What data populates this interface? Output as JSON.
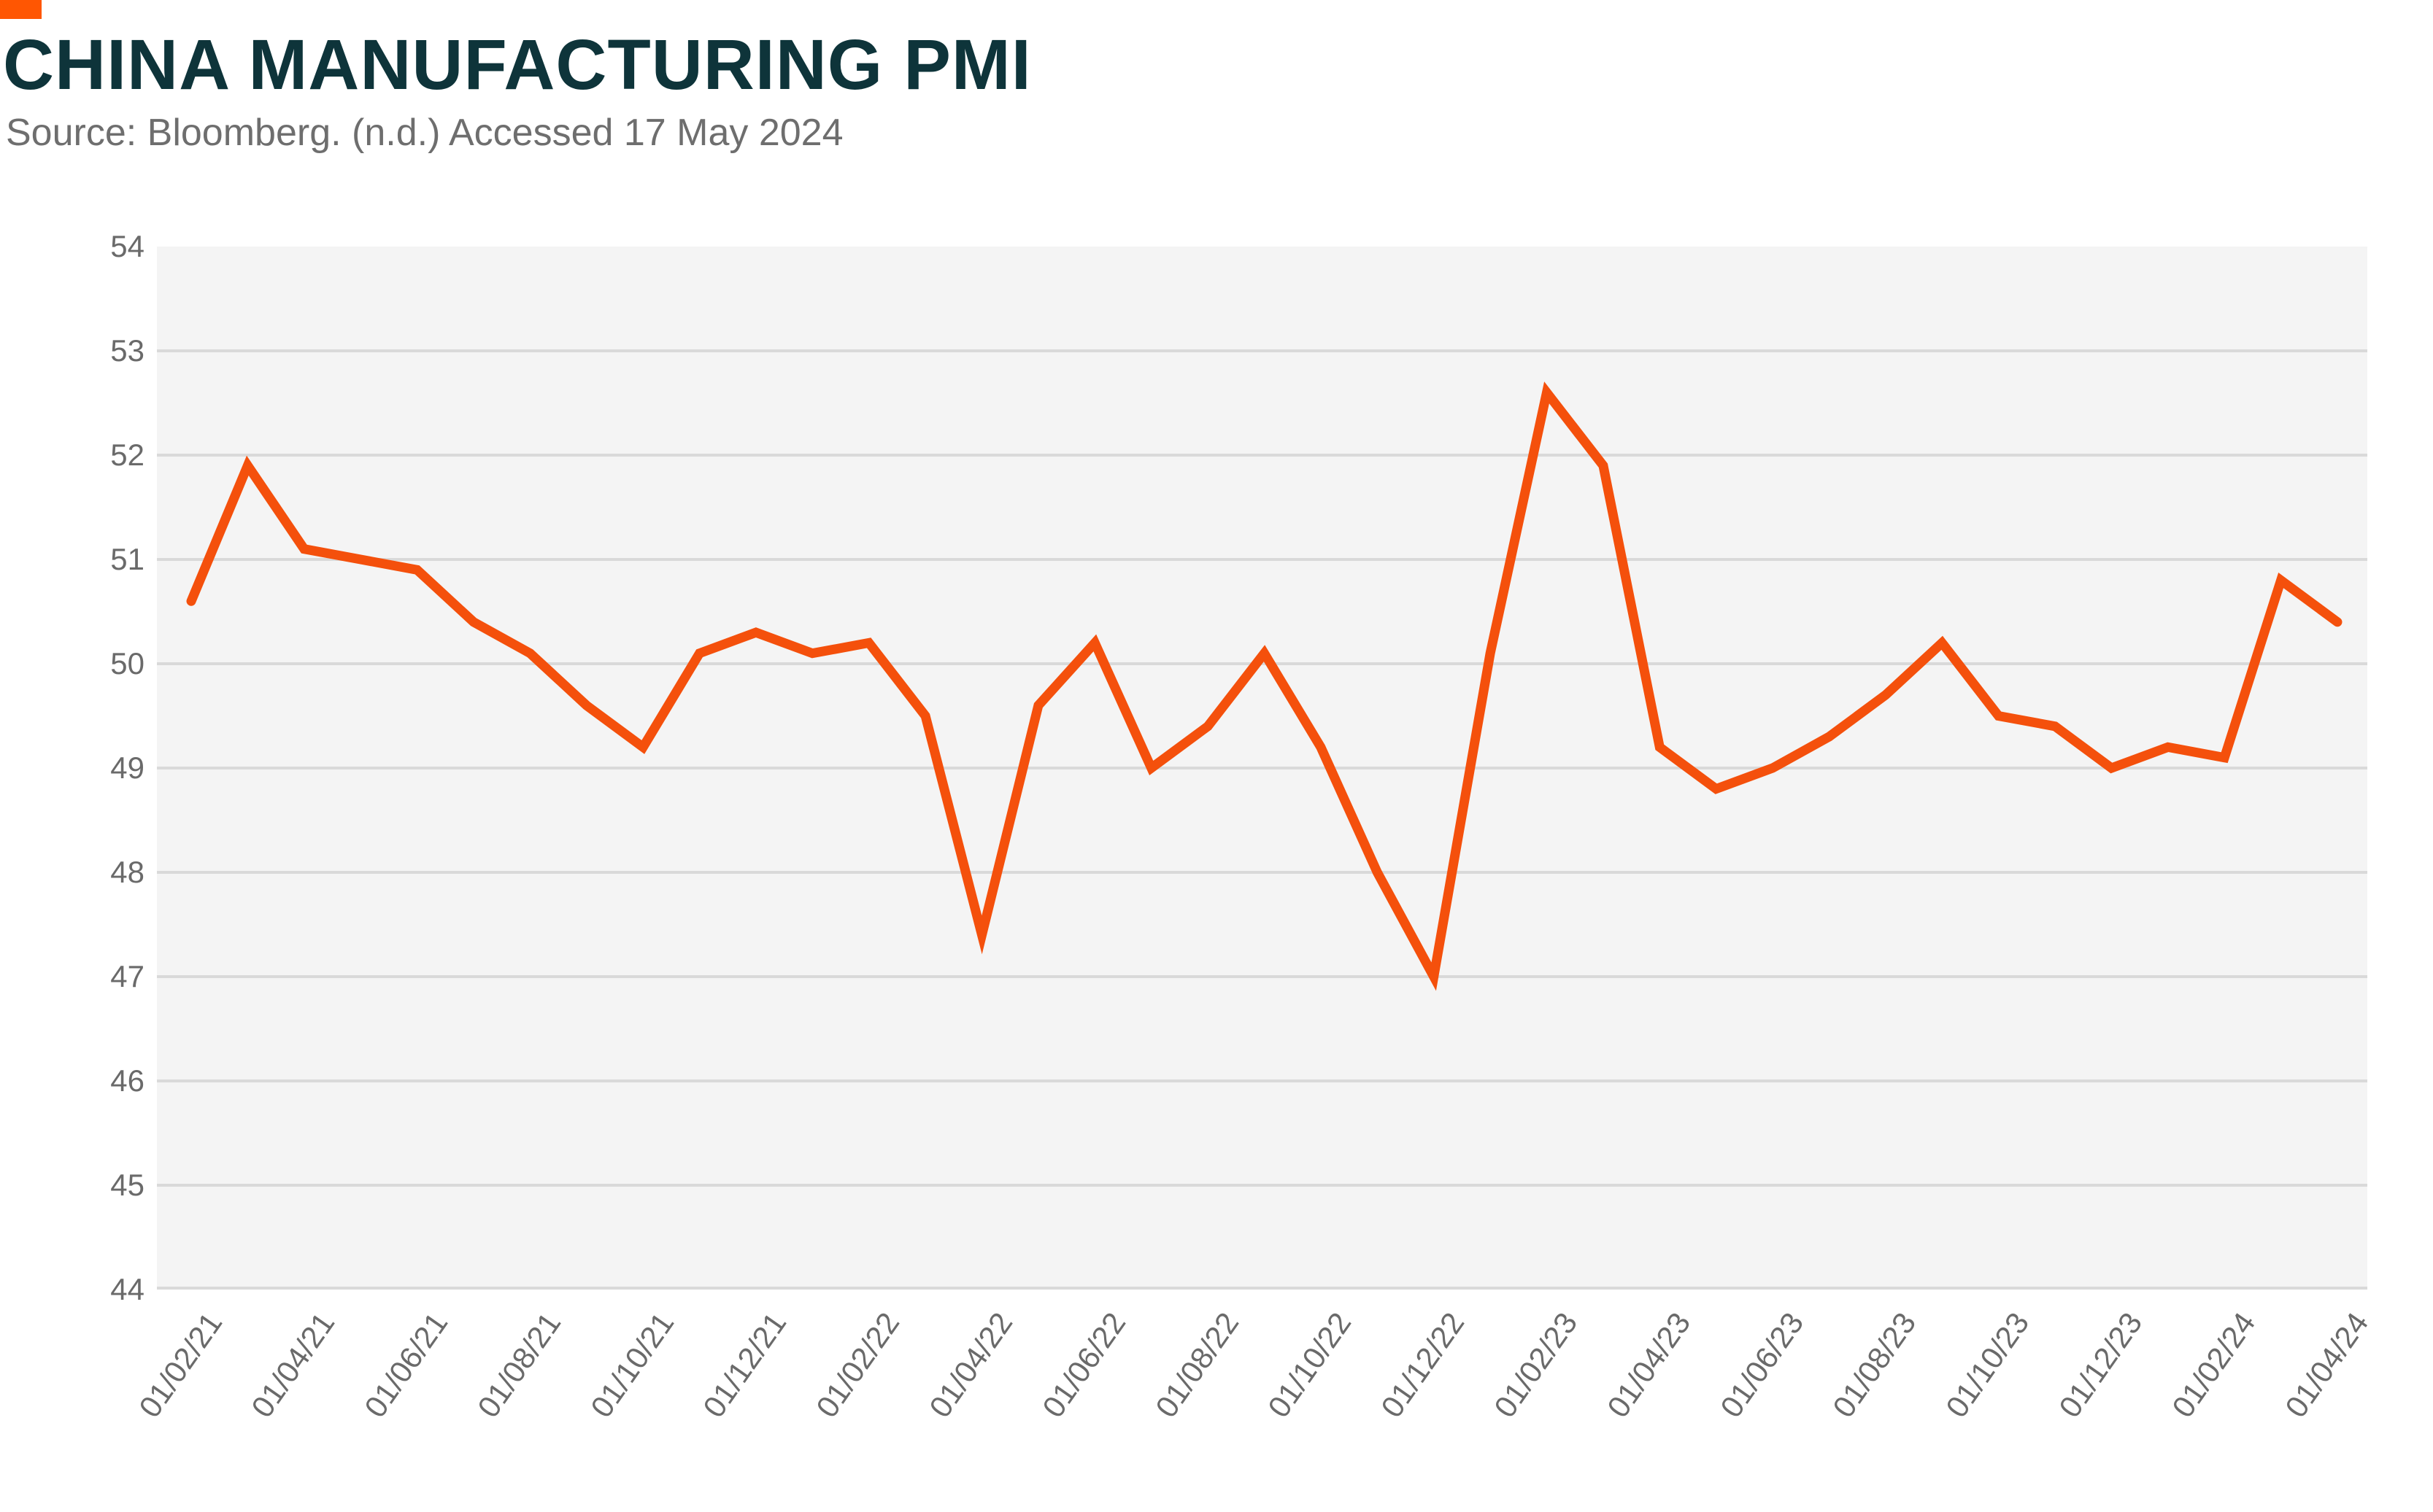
{
  "header": {
    "title": "CHINA MANUFACTURING PMI",
    "source": "Source: Bloomberg. (n.d.) Accessed 17 May 2024"
  },
  "colors": {
    "brand_accent": "#FF5602",
    "title_text": "#0E343A",
    "source_text": "#6E6E6E",
    "tick_text": "#6A6A6A",
    "plot_background": "#F4F4F4",
    "gridline": "#D9D9D9",
    "line": "#F4500C",
    "page_background": "#FFFFFF"
  },
  "chart_data": {
    "type": "line",
    "title": "CHINA MANUFACTURING PMI",
    "subtitle": "Source: Bloomberg. (n.d.) Accessed 17 May 2024",
    "series_name": "China Manufacturing PMI",
    "xlabel": "",
    "ylabel": "",
    "ylim": [
      44,
      54
    ],
    "grid": "horizontal",
    "legend_position": "none",
    "categories": [
      "01/02/21",
      "01/03/21",
      "01/04/21",
      "01/05/21",
      "01/06/21",
      "01/07/21",
      "01/08/21",
      "01/09/21",
      "01/10/21",
      "01/11/21",
      "01/12/21",
      "01/01/22",
      "01/02/22",
      "01/03/22",
      "01/04/22",
      "01/05/22",
      "01/06/22",
      "01/07/22",
      "01/08/22",
      "01/09/22",
      "01/10/22",
      "01/11/22",
      "01/12/22",
      "01/01/23",
      "01/02/23",
      "01/03/23",
      "01/04/23",
      "01/05/23",
      "01/06/23",
      "01/07/23",
      "01/08/23",
      "01/09/23",
      "01/10/23",
      "01/11/23",
      "01/12/23",
      "01/01/24",
      "01/02/24",
      "01/03/24",
      "01/04/24"
    ],
    "values": [
      50.6,
      51.9,
      51.1,
      51.0,
      50.9,
      50.4,
      50.1,
      49.6,
      49.2,
      50.1,
      50.3,
      50.1,
      50.2,
      49.5,
      47.4,
      49.6,
      50.2,
      49.0,
      49.4,
      50.1,
      49.2,
      48.0,
      47.0,
      50.1,
      52.6,
      51.9,
      49.2,
      48.8,
      49.0,
      49.3,
      49.7,
      50.2,
      49.5,
      49.4,
      49.0,
      49.2,
      49.1,
      50.8,
      50.4
    ],
    "y_ticks": [
      54,
      53,
      52,
      51,
      50,
      49,
      48,
      47,
      46,
      45,
      44
    ],
    "y_gridlines": [
      53,
      52,
      51,
      50,
      49,
      48,
      47,
      46,
      45,
      44
    ],
    "x_tick_labels": [
      "01/02/21",
      "01/04/21",
      "01/06/21",
      "01/08/21",
      "01/10/21",
      "01/12/21",
      "01/02/22",
      "01/04/22",
      "01/06/22",
      "01/08/22",
      "01/10/22",
      "01/12/22",
      "01/02/23",
      "01/04/23",
      "01/06/23",
      "01/08/23",
      "01/10/23",
      "01/12/23",
      "01/02/24",
      "01/04/24"
    ],
    "x_tick_step_months": 2
  }
}
